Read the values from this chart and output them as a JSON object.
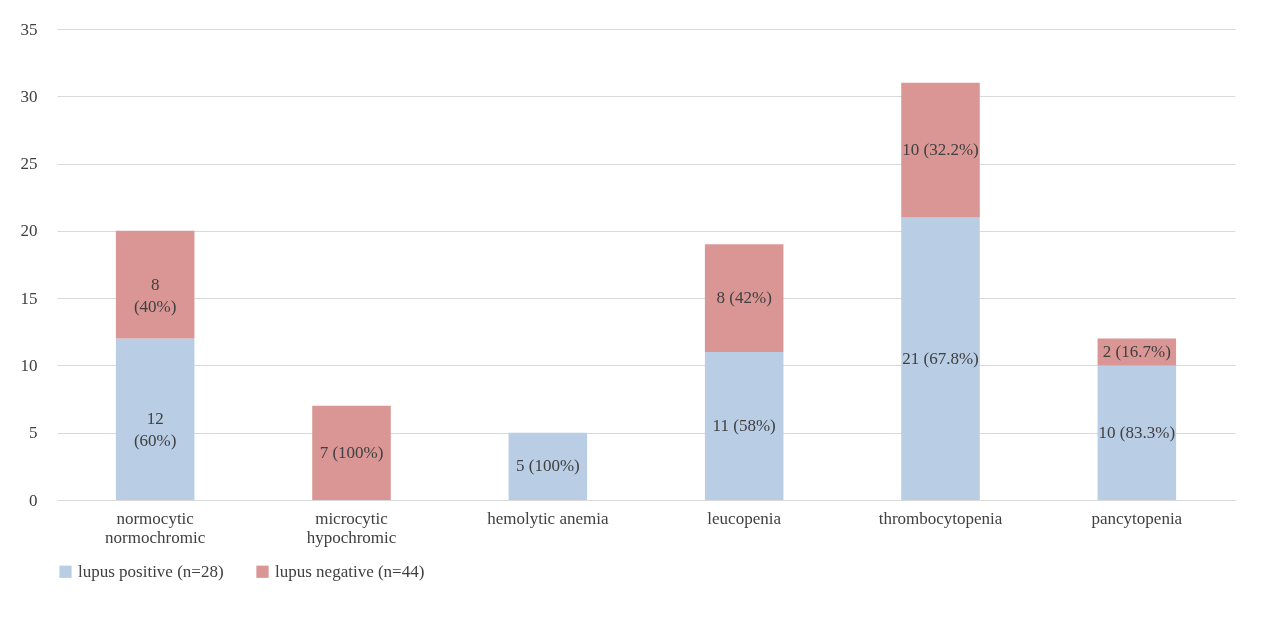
{
  "chart_data": {
    "type": "bar",
    "stacked": true,
    "categories": [
      "normocytic\nnormochromic",
      "microcytic\nhypochromic",
      "hemolytic anemia",
      "leucopenia",
      "thrombocytopenia",
      "pancytopenia"
    ],
    "series": [
      {
        "name": "lupus positive (n=28)",
        "color": "#b9cde5",
        "values": [
          12,
          0,
          5,
          11,
          21,
          10
        ],
        "value_labels": [
          "12\n(60%)",
          null,
          "5 (100%)",
          "11 (58%)",
          "21 (67.8%)",
          "10 (83.3%)"
        ]
      },
      {
        "name": "lupus negative (n=44)",
        "color": "#d99694",
        "values": [
          8,
          7,
          0,
          8,
          10,
          2
        ],
        "value_labels": [
          "8\n(40%)",
          "7 (100%)",
          null,
          "8 (42%)",
          "10 (32.2%)",
          "2 (16.7%)"
        ]
      }
    ],
    "ylim": [
      0,
      35
    ],
    "yticks": [
      0,
      5,
      10,
      15,
      20,
      25,
      30,
      35
    ],
    "grid": "y",
    "legend": "bottom"
  }
}
